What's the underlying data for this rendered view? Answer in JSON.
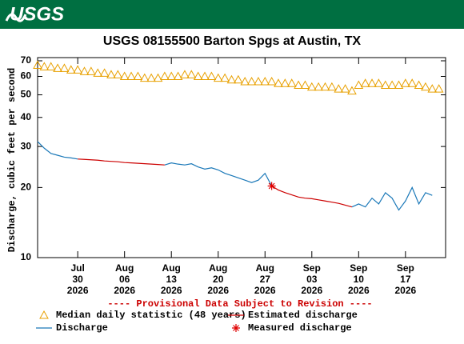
{
  "header": {
    "logo": "USGS"
  },
  "chart_data": {
    "type": "line",
    "title": "USGS 08155500 Barton Spgs at Austin, TX",
    "y_label": "Discharge, cubic feet per second",
    "provisional_note": "---- Provisional Data Subject to Revision ----",
    "log_y": true,
    "xlim": [
      "2026-07-24",
      "2026-09-23"
    ],
    "ylim": [
      10,
      70
    ],
    "yticks": [
      10,
      20,
      30,
      40,
      50,
      60,
      70
    ],
    "xticks": [
      {
        "value": "2026-07-30",
        "label": [
          "Jul",
          "30",
          "2026"
        ]
      },
      {
        "value": "2026-08-06",
        "label": [
          "Aug",
          "06",
          "2026"
        ]
      },
      {
        "value": "2026-08-13",
        "label": [
          "Aug",
          "13",
          "2026"
        ]
      },
      {
        "value": "2026-08-20",
        "label": [
          "Aug",
          "20",
          "2026"
        ]
      },
      {
        "value": "2026-08-27",
        "label": [
          "Aug",
          "27",
          "2026"
        ]
      },
      {
        "value": "2026-09-03",
        "label": [
          "Sep",
          "03",
          "2026"
        ]
      },
      {
        "value": "2026-09-10",
        "label": [
          "Sep",
          "10",
          "2026"
        ]
      },
      {
        "value": "2026-09-17",
        "label": [
          "Sep",
          "17",
          "2026"
        ]
      }
    ],
    "x": [
      "2026-07-24",
      "2026-07-25",
      "2026-07-26",
      "2026-07-27",
      "2026-07-28",
      "2026-07-29",
      "2026-07-30",
      "2026-07-31",
      "2026-08-01",
      "2026-08-02",
      "2026-08-03",
      "2026-08-04",
      "2026-08-05",
      "2026-08-06",
      "2026-08-07",
      "2026-08-08",
      "2026-08-09",
      "2026-08-10",
      "2026-08-11",
      "2026-08-12",
      "2026-08-13",
      "2026-08-14",
      "2026-08-15",
      "2026-08-16",
      "2026-08-17",
      "2026-08-18",
      "2026-08-19",
      "2026-08-20",
      "2026-08-21",
      "2026-08-22",
      "2026-08-23",
      "2026-08-24",
      "2026-08-25",
      "2026-08-26",
      "2026-08-27",
      "2026-08-28",
      "2026-08-29",
      "2026-08-30",
      "2026-08-31",
      "2026-09-01",
      "2026-09-02",
      "2026-09-03",
      "2026-09-04",
      "2026-09-05",
      "2026-09-06",
      "2026-09-07",
      "2026-09-08",
      "2026-09-09",
      "2026-09-10",
      "2026-09-11",
      "2026-09-12",
      "2026-09-13",
      "2026-09-14",
      "2026-09-15",
      "2026-09-16",
      "2026-09-17",
      "2026-09-18",
      "2026-09-19",
      "2026-09-20",
      "2026-09-21",
      "2026-09-22"
    ],
    "series": [
      {
        "name": "Median daily statistic (48 years)",
        "color": "#e8a000",
        "marker": "triangle",
        "values": [
          67,
          66,
          66,
          65,
          65,
          64,
          64,
          63,
          63,
          62,
          62,
          61,
          61,
          60,
          60,
          60,
          59,
          59,
          59,
          60,
          60,
          60,
          61,
          61,
          60,
          60,
          60,
          59,
          59,
          58,
          58,
          57,
          57,
          57,
          57,
          57,
          56,
          56,
          56,
          55,
          55,
          54,
          54,
          54,
          54,
          53,
          53,
          52,
          55,
          56,
          56,
          56,
          55,
          55,
          55,
          56,
          56,
          55,
          54,
          53,
          53
        ]
      },
      {
        "name": "Estimated discharge",
        "color": "#cc0000",
        "marker": "line",
        "values": [
          null,
          null,
          null,
          null,
          null,
          null,
          26.5,
          26.4,
          26.3,
          26.2,
          26,
          25.9,
          25.8,
          25.6,
          25.5,
          25.4,
          25.3,
          25.2,
          25.1,
          25,
          null,
          null,
          null,
          null,
          null,
          null,
          null,
          null,
          null,
          null,
          null,
          null,
          null,
          null,
          null,
          20.3,
          19.5,
          19,
          18.6,
          18.2,
          18,
          17.9,
          17.7,
          17.5,
          17.3,
          17.1,
          16.8,
          16.5,
          null,
          null,
          null,
          null,
          null,
          null,
          null,
          null,
          null,
          null,
          null,
          null,
          null
        ]
      },
      {
        "name": "Discharge",
        "color": "#1a78b8",
        "marker": "line",
        "values": [
          31.5,
          29.5,
          28,
          27.5,
          27,
          26.8,
          26.5,
          null,
          null,
          null,
          null,
          null,
          null,
          null,
          null,
          null,
          null,
          null,
          null,
          25,
          25.5,
          25.2,
          25,
          25.3,
          24.5,
          24,
          24.3,
          23.8,
          23,
          22.5,
          22,
          21.5,
          21,
          21.5,
          23,
          20.3,
          null,
          null,
          null,
          null,
          null,
          null,
          null,
          null,
          null,
          null,
          null,
          16.5,
          17,
          16.5,
          18,
          17,
          19,
          18,
          16,
          17.5,
          20,
          17,
          19,
          18.5,
          null
        ]
      },
      {
        "name": "Measured discharge",
        "color": "#e00000",
        "marker": "asterisk",
        "values": [
          null,
          null,
          null,
          null,
          null,
          null,
          null,
          null,
          null,
          null,
          null,
          null,
          null,
          null,
          null,
          null,
          null,
          null,
          null,
          null,
          null,
          null,
          null,
          null,
          null,
          null,
          null,
          null,
          null,
          null,
          null,
          null,
          null,
          null,
          null,
          20.3,
          null,
          null,
          null,
          null,
          null,
          null,
          null,
          null,
          null,
          null,
          null,
          null,
          null,
          null,
          null,
          null,
          null,
          null,
          null,
          null,
          null,
          null,
          null,
          null,
          null
        ]
      }
    ]
  }
}
